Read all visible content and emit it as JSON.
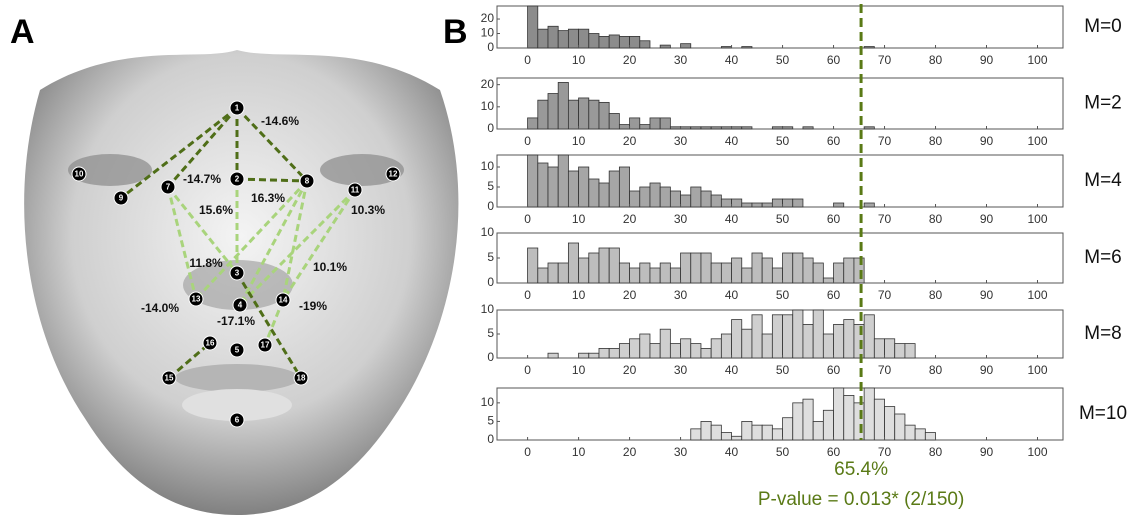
{
  "face": {
    "panel_label": "A",
    "landmarks": [
      "1",
      "2",
      "3",
      "4",
      "5",
      "6",
      "7",
      "8",
      "9",
      "10",
      "11",
      "12",
      "13",
      "14",
      "15",
      "16",
      "17",
      "18"
    ],
    "edge_labels": [
      "-14.6%",
      "-14.7%",
      "16.3%",
      "15.6%",
      "10.3%",
      "11.8%",
      "10.1%",
      "-14.0%",
      "-17.1%",
      "-19%"
    ]
  },
  "panel_label": "B",
  "annotation": {
    "value": 65.4,
    "label": "65.4%",
    "text": "P-value = 0.013* (2/150)",
    "color": "#5a7a16"
  },
  "chart_data": [
    {
      "type": "histogram",
      "title": "M=0",
      "color": "#8c8c8c",
      "bins": [
        0,
        2,
        4,
        6,
        8,
        10,
        12,
        14,
        16,
        18,
        20,
        22,
        24,
        26,
        28,
        30,
        32,
        34,
        36,
        38,
        40,
        42,
        44,
        46,
        48,
        50,
        52,
        54,
        56,
        58,
        60,
        62,
        64,
        66,
        68,
        70,
        72,
        74,
        76,
        78,
        80
      ],
      "values": [
        29,
        13,
        15,
        12,
        13,
        13,
        10,
        8,
        9,
        8,
        8,
        5,
        0,
        2,
        0,
        3,
        0,
        0,
        0,
        1,
        0,
        1,
        0,
        0,
        0,
        0,
        0,
        0,
        0,
        0,
        0,
        0,
        0,
        1,
        0,
        0,
        0,
        0,
        0,
        0
      ],
      "xlim": [
        -6,
        105
      ],
      "xticks": [
        0,
        10,
        20,
        30,
        40,
        50,
        60,
        70,
        80,
        90,
        100
      ],
      "ylim": [
        0,
        29
      ],
      "yticks": [
        0,
        10,
        20
      ]
    },
    {
      "type": "histogram",
      "title": "M=2",
      "color": "#999999",
      "bins": [
        0,
        2,
        4,
        6,
        8,
        10,
        12,
        14,
        16,
        18,
        20,
        22,
        24,
        26,
        28,
        30,
        32,
        34,
        36,
        38,
        40,
        42,
        44,
        46,
        48,
        50,
        52,
        54,
        56,
        58,
        60,
        62,
        64,
        66,
        68,
        70,
        72,
        74,
        76,
        78,
        80
      ],
      "values": [
        5,
        13,
        16,
        21,
        13,
        14,
        13,
        12,
        7,
        2,
        5,
        2,
        5,
        5,
        1,
        1,
        1,
        1,
        1,
        1,
        1,
        1,
        0,
        0,
        1,
        1,
        0,
        1,
        0,
        0,
        0,
        0,
        0,
        1,
        0,
        0,
        0,
        0,
        0,
        0
      ],
      "xlim": [
        -6,
        105
      ],
      "xticks": [
        0,
        10,
        20,
        30,
        40,
        50,
        60,
        70,
        80,
        90,
        100
      ],
      "ylim": [
        0,
        23
      ],
      "yticks": [
        0,
        10,
        20
      ]
    },
    {
      "type": "histogram",
      "title": "M=4",
      "color": "#a6a6a6",
      "bins": [
        0,
        2,
        4,
        6,
        8,
        10,
        12,
        14,
        16,
        18,
        20,
        22,
        24,
        26,
        28,
        30,
        32,
        34,
        36,
        38,
        40,
        42,
        44,
        46,
        48,
        50,
        52,
        54,
        56,
        58,
        60,
        62,
        64,
        66,
        68,
        70,
        72,
        74,
        76,
        78,
        80
      ],
      "values": [
        13,
        11,
        10,
        13,
        9,
        10,
        7,
        6,
        9,
        10,
        4,
        5,
        6,
        5,
        4,
        3,
        5,
        4,
        3,
        2,
        2,
        1,
        1,
        1,
        2,
        2,
        2,
        0,
        0,
        0,
        1,
        0,
        0,
        1,
        0,
        0,
        0,
        0,
        0,
        0
      ],
      "xlim": [
        -6,
        105
      ],
      "xticks": [
        0,
        10,
        20,
        30,
        40,
        50,
        60,
        70,
        80,
        90,
        100
      ],
      "ylim": [
        0,
        13
      ],
      "yticks": [
        0,
        5,
        10
      ]
    },
    {
      "type": "histogram",
      "title": "M=6",
      "color": "#bdbdbd",
      "bins": [
        0,
        2,
        4,
        6,
        8,
        10,
        12,
        14,
        16,
        18,
        20,
        22,
        24,
        26,
        28,
        30,
        32,
        34,
        36,
        38,
        40,
        42,
        44,
        46,
        48,
        50,
        52,
        54,
        56,
        58,
        60,
        62,
        64,
        66,
        68,
        70,
        72,
        74,
        76,
        78,
        80
      ],
      "values": [
        7,
        3,
        4,
        4,
        8,
        5,
        6,
        7,
        7,
        4,
        3,
        4,
        3,
        4,
        3,
        6,
        6,
        6,
        4,
        4,
        5,
        3,
        6,
        5,
        3,
        6,
        6,
        5,
        4,
        1,
        4,
        5,
        5,
        0,
        0,
        0,
        0,
        0,
        0,
        0
      ],
      "xlim": [
        -6,
        105
      ],
      "xticks": [
        0,
        10,
        20,
        30,
        40,
        50,
        60,
        70,
        80,
        90,
        100
      ],
      "ylim": [
        0,
        10
      ],
      "yticks": [
        0,
        5,
        10
      ]
    },
    {
      "type": "histogram",
      "title": "M=8",
      "color": "#cfcfcf",
      "bins": [
        0,
        2,
        4,
        6,
        8,
        10,
        12,
        14,
        16,
        18,
        20,
        22,
        24,
        26,
        28,
        30,
        32,
        34,
        36,
        38,
        40,
        42,
        44,
        46,
        48,
        50,
        52,
        54,
        56,
        58,
        60,
        62,
        64,
        66,
        68,
        70,
        72,
        74,
        76,
        78,
        80
      ],
      "values": [
        0,
        0,
        1,
        0,
        0,
        1,
        1,
        2,
        2,
        3,
        4,
        5,
        3,
        6,
        3,
        4,
        3,
        2,
        4,
        5,
        8,
        6,
        9,
        5,
        9,
        9,
        10,
        7,
        10,
        5,
        7,
        8,
        7,
        9,
        4,
        4,
        3,
        3,
        0,
        0
      ],
      "xlim": [
        -6,
        105
      ],
      "xticks": [
        0,
        10,
        20,
        30,
        40,
        50,
        60,
        70,
        80,
        90,
        100
      ],
      "ylim": [
        0,
        10
      ],
      "yticks": [
        0,
        5,
        10
      ]
    },
    {
      "type": "histogram",
      "title": "M=10",
      "color": "#dedede",
      "bins": [
        0,
        2,
        4,
        6,
        8,
        10,
        12,
        14,
        16,
        18,
        20,
        22,
        24,
        26,
        28,
        30,
        32,
        34,
        36,
        38,
        40,
        42,
        44,
        46,
        48,
        50,
        52,
        54,
        56,
        58,
        60,
        62,
        64,
        66,
        68,
        70,
        72,
        74,
        76,
        78,
        80
      ],
      "values": [
        0,
        0,
        0,
        0,
        0,
        0,
        0,
        0,
        0,
        0,
        0,
        0,
        0,
        0,
        0,
        0,
        3,
        5,
        4,
        2,
        1,
        5,
        4,
        4,
        3,
        6,
        10,
        11,
        5,
        8,
        14,
        12,
        10,
        14,
        11,
        9,
        7,
        4,
        3,
        2
      ],
      "xlim": [
        -6,
        105
      ],
      "xticks": [
        0,
        10,
        20,
        30,
        40,
        50,
        60,
        70,
        80,
        90,
        100
      ],
      "ylim": [
        0,
        14
      ],
      "yticks": [
        0,
        5,
        10
      ]
    }
  ]
}
